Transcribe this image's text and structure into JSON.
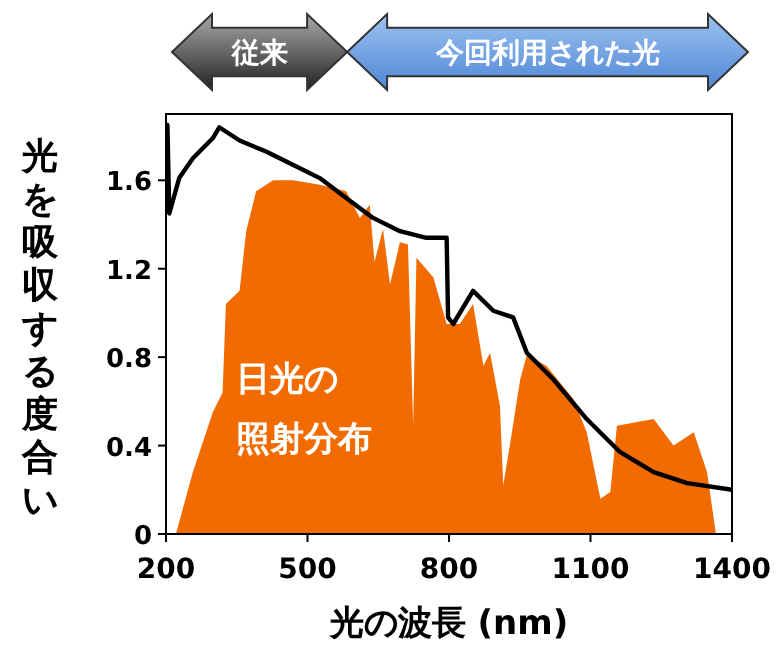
{
  "chart_data": {
    "type": "area",
    "xlabel": "光の波長 (nm)",
    "ylabel": "光を吸収する度合い",
    "xlim": [
      200,
      1400
    ],
    "xticks": [
      200,
      500,
      800,
      1100,
      1400
    ],
    "ylim": [
      0,
      1.9
    ],
    "yticks": [
      0,
      0.4,
      0.8,
      1.2,
      1.6
    ],
    "grid": false,
    "annotations": [
      "従来",
      "今回利用された光",
      "日光の",
      "照射分布"
    ],
    "series": [
      {
        "color": "#f26b00",
        "x": [
          221,
          257,
          299,
          320,
          327,
          356,
          370,
          391,
          427,
          469,
          526,
          582,
          611,
          632,
          642,
          660,
          675,
          696,
          713,
          724,
          731,
          767,
          795,
          823,
          851,
          873,
          887,
          908,
          915,
          929,
          951,
          965,
          1007,
          1064,
          1092,
          1121,
          1142,
          1156,
          1234,
          1276,
          1319,
          1347,
          1366
        ],
        "values": [
          0,
          0.28,
          0.55,
          0.64,
          1.04,
          1.1,
          1.37,
          1.55,
          1.6,
          1.6,
          1.58,
          1.55,
          1.43,
          1.49,
          1.23,
          1.38,
          1.13,
          1.32,
          1.31,
          0.49,
          1.25,
          1.16,
          0.95,
          0.95,
          1.04,
          0.76,
          0.82,
          0.58,
          0.22,
          0.4,
          0.7,
          0.81,
          0.76,
          0.61,
          0.46,
          0.16,
          0.19,
          0.49,
          0.52,
          0.4,
          0.46,
          0.28,
          0
        ]
      },
      {
        "type": "line",
        "color": "#000000",
        "x": [
          200,
          203,
          207,
          228,
          257,
          299,
          313,
          356,
          412,
          469,
          526,
          582,
          639,
          696,
          752,
          795,
          798,
          809,
          851,
          894,
          936,
          965,
          1021,
          1092,
          1163,
          1234,
          1305,
          1400
        ],
        "values": [
          1.45,
          1.85,
          1.45,
          1.61,
          1.7,
          1.79,
          1.84,
          1.78,
          1.73,
          1.67,
          1.61,
          1.52,
          1.43,
          1.37,
          1.34,
          1.34,
          0.98,
          0.95,
          1.1,
          1.01,
          0.98,
          0.82,
          0.7,
          0.52,
          0.37,
          0.28,
          0.23,
          0.2
        ]
      }
    ]
  }
}
